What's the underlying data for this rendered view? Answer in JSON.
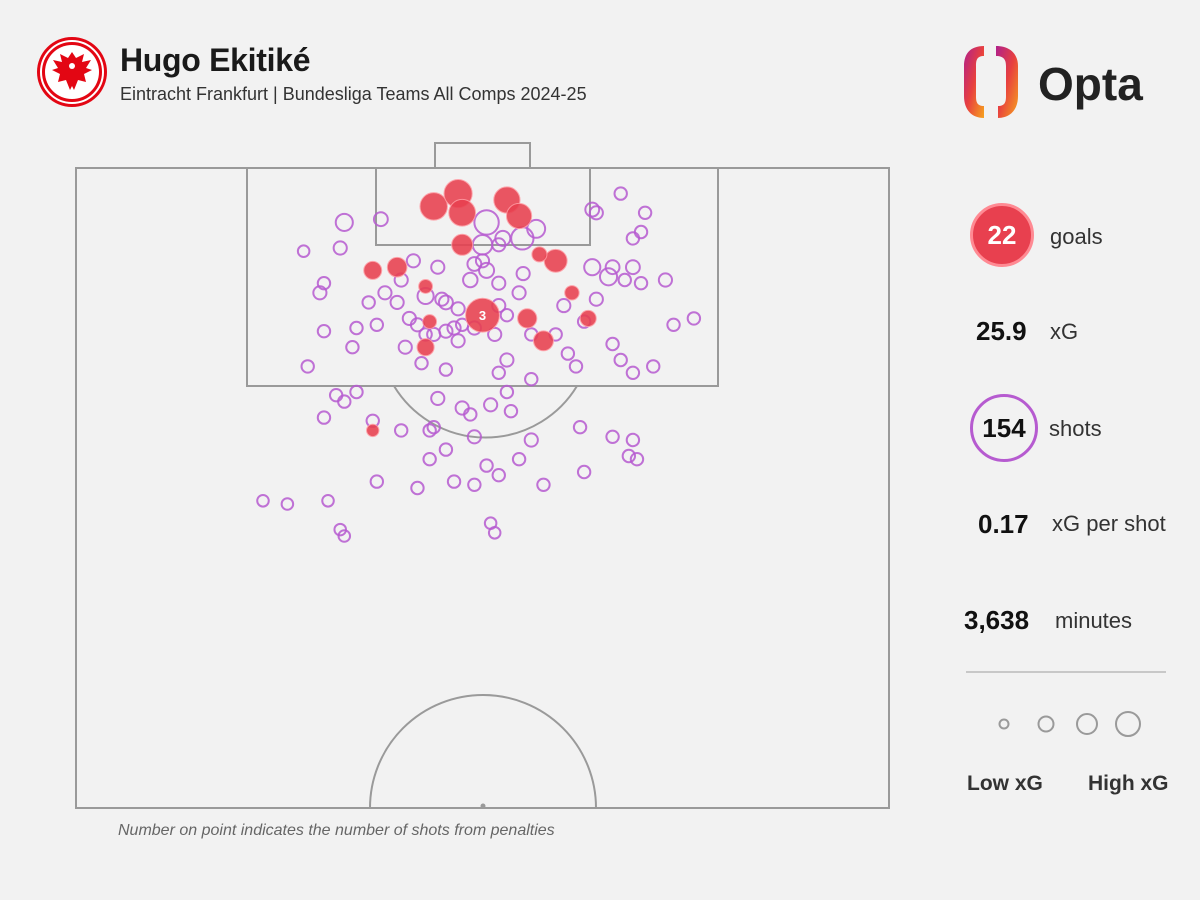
{
  "header": {
    "title": "Hugo Ekitiké",
    "subtitle": "Eintracht Frankfurt | Bundesliga Teams All Comps 2024-25",
    "crest_icon": "eagle-crest-icon",
    "logo_text": "Opta"
  },
  "stats": {
    "goals_value": "22",
    "goals_label": "goals",
    "xg_value": "25.9",
    "xg_label": "xG",
    "shots_value": "154",
    "shots_label": "shots",
    "xg_per_shot_value": "0.17",
    "xg_per_shot_label": "xG per shot",
    "minutes_value": "3,638",
    "minutes_label": "minutes"
  },
  "legend": {
    "low_label": "Low xG",
    "high_label": "High xG"
  },
  "footnote": "Number on point indicates the number of shots from penalties",
  "colors": {
    "goal": "#e8404f",
    "shot": "#b65bd0",
    "pitch_line": "#9a9a9a",
    "background": "#f2f2f2"
  },
  "chart_data": {
    "type": "scatter",
    "x_units": "pitch width, 0-100 left to right",
    "y_units": "distance from goal line, 0-100 of pitch length shown",
    "legend_placement": "right",
    "goals": [
      {
        "x": 44.0,
        "y": 6.0,
        "xg": 0.45
      },
      {
        "x": 47.0,
        "y": 4.0,
        "xg": 0.48
      },
      {
        "x": 47.5,
        "y": 7.0,
        "xg": 0.42
      },
      {
        "x": 53.0,
        "y": 5.0,
        "xg": 0.4
      },
      {
        "x": 54.5,
        "y": 7.5,
        "xg": 0.36
      },
      {
        "x": 47.5,
        "y": 12.0,
        "xg": 0.22
      },
      {
        "x": 59.0,
        "y": 14.5,
        "xg": 0.28
      },
      {
        "x": 36.5,
        "y": 16.0,
        "xg": 0.14
      },
      {
        "x": 39.5,
        "y": 15.5,
        "xg": 0.18
      },
      {
        "x": 57.0,
        "y": 13.5,
        "xg": 0.08
      },
      {
        "x": 43.0,
        "y": 18.5,
        "xg": 0.06
      },
      {
        "x": 61.0,
        "y": 19.5,
        "xg": 0.07
      },
      {
        "x": 50.0,
        "y": 23.0,
        "xg": 0.76,
        "penalties": 3
      },
      {
        "x": 55.5,
        "y": 23.5,
        "xg": 0.17
      },
      {
        "x": 63.0,
        "y": 23.5,
        "xg": 0.1
      },
      {
        "x": 43.5,
        "y": 24.0,
        "xg": 0.06
      },
      {
        "x": 57.5,
        "y": 27.0,
        "xg": 0.19
      },
      {
        "x": 43.0,
        "y": 28.0,
        "xg": 0.12
      },
      {
        "x": 36.5,
        "y": 41.0,
        "xg": 0.04
      }
    ],
    "shots": [
      {
        "x": 50.5,
        "y": 8.5,
        "xg": 0.33
      },
      {
        "x": 54.9,
        "y": 11.0,
        "xg": 0.26
      },
      {
        "x": 33.0,
        "y": 8.5,
        "xg": 0.12
      },
      {
        "x": 56.6,
        "y": 9.5,
        "xg": 0.14
      },
      {
        "x": 50.0,
        "y": 12.0,
        "xg": 0.18
      },
      {
        "x": 52.5,
        "y": 11.0,
        "xg": 0.08
      },
      {
        "x": 37.5,
        "y": 8.0,
        "xg": 0.06
      },
      {
        "x": 63.5,
        "y": 6.5,
        "xg": 0.06
      },
      {
        "x": 64.0,
        "y": 7.0,
        "xg": 0.05
      },
      {
        "x": 67.0,
        "y": 4.0,
        "xg": 0.04
      },
      {
        "x": 70.0,
        "y": 7.0,
        "xg": 0.04
      },
      {
        "x": 69.5,
        "y": 10.0,
        "xg": 0.04
      },
      {
        "x": 68.5,
        "y": 11.0,
        "xg": 0.04
      },
      {
        "x": 28.0,
        "y": 13.0,
        "xg": 0.03
      },
      {
        "x": 32.5,
        "y": 12.5,
        "xg": 0.05
      },
      {
        "x": 41.5,
        "y": 14.5,
        "xg": 0.05
      },
      {
        "x": 50.0,
        "y": 14.5,
        "xg": 0.05
      },
      {
        "x": 52.0,
        "y": 12.0,
        "xg": 0.05
      },
      {
        "x": 49.0,
        "y": 15.0,
        "xg": 0.06
      },
      {
        "x": 44.5,
        "y": 15.5,
        "xg": 0.05
      },
      {
        "x": 50.5,
        "y": 16.0,
        "xg": 0.08
      },
      {
        "x": 48.5,
        "y": 17.5,
        "xg": 0.07
      },
      {
        "x": 55.0,
        "y": 16.5,
        "xg": 0.05
      },
      {
        "x": 52.0,
        "y": 18.0,
        "xg": 0.05
      },
      {
        "x": 63.5,
        "y": 15.5,
        "xg": 0.1
      },
      {
        "x": 65.5,
        "y": 17.0,
        "xg": 0.12
      },
      {
        "x": 66.0,
        "y": 15.5,
        "xg": 0.06
      },
      {
        "x": 68.5,
        "y": 15.5,
        "xg": 0.06
      },
      {
        "x": 67.5,
        "y": 17.5,
        "xg": 0.04
      },
      {
        "x": 72.5,
        "y": 17.5,
        "xg": 0.05
      },
      {
        "x": 69.5,
        "y": 18.0,
        "xg": 0.04
      },
      {
        "x": 40.0,
        "y": 17.5,
        "xg": 0.05
      },
      {
        "x": 38.0,
        "y": 19.5,
        "xg": 0.05
      },
      {
        "x": 30.5,
        "y": 18.0,
        "xg": 0.04
      },
      {
        "x": 30.0,
        "y": 19.5,
        "xg": 0.05
      },
      {
        "x": 39.5,
        "y": 21.0,
        "xg": 0.05
      },
      {
        "x": 45.0,
        "y": 20.5,
        "xg": 0.05
      },
      {
        "x": 52.0,
        "y": 21.5,
        "xg": 0.05
      },
      {
        "x": 54.5,
        "y": 19.5,
        "xg": 0.05
      },
      {
        "x": 60.0,
        "y": 21.5,
        "xg": 0.05
      },
      {
        "x": 64.0,
        "y": 20.5,
        "xg": 0.05
      },
      {
        "x": 43.0,
        "y": 20.0,
        "xg": 0.1
      },
      {
        "x": 45.5,
        "y": 21.0,
        "xg": 0.06
      },
      {
        "x": 47.0,
        "y": 22.0,
        "xg": 0.05
      },
      {
        "x": 46.5,
        "y": 25.0,
        "xg": 0.05
      },
      {
        "x": 47.0,
        "y": 27.0,
        "xg": 0.05
      },
      {
        "x": 51.5,
        "y": 26.0,
        "xg": 0.05
      },
      {
        "x": 45.5,
        "y": 25.5,
        "xg": 0.05
      },
      {
        "x": 47.5,
        "y": 24.5,
        "xg": 0.04
      },
      {
        "x": 42.0,
        "y": 24.5,
        "xg": 0.05
      },
      {
        "x": 37.0,
        "y": 24.5,
        "xg": 0.04
      },
      {
        "x": 49.0,
        "y": 25.0,
        "xg": 0.05
      },
      {
        "x": 44.0,
        "y": 26.0,
        "xg": 0.05
      },
      {
        "x": 40.5,
        "y": 28.0,
        "xg": 0.05
      },
      {
        "x": 34.5,
        "y": 25.0,
        "xg": 0.04
      },
      {
        "x": 36.0,
        "y": 21.0,
        "xg": 0.04
      },
      {
        "x": 43.0,
        "y": 26.0,
        "xg": 0.04
      },
      {
        "x": 42.5,
        "y": 30.5,
        "xg": 0.04
      },
      {
        "x": 45.5,
        "y": 31.5,
        "xg": 0.04
      },
      {
        "x": 52.0,
        "y": 32.0,
        "xg": 0.04
      },
      {
        "x": 53.0,
        "y": 30.0,
        "xg": 0.05
      },
      {
        "x": 59.0,
        "y": 26.0,
        "xg": 0.04
      },
      {
        "x": 60.5,
        "y": 29.0,
        "xg": 0.04
      },
      {
        "x": 61.5,
        "y": 31.0,
        "xg": 0.04
      },
      {
        "x": 67.0,
        "y": 30.0,
        "xg": 0.04
      },
      {
        "x": 68.5,
        "y": 32.0,
        "xg": 0.04
      },
      {
        "x": 71.0,
        "y": 31.0,
        "xg": 0.04
      },
      {
        "x": 76.0,
        "y": 23.5,
        "xg": 0.04
      },
      {
        "x": 73.5,
        "y": 24.5,
        "xg": 0.04
      },
      {
        "x": 66.0,
        "y": 27.5,
        "xg": 0.04
      },
      {
        "x": 62.5,
        "y": 24.0,
        "xg": 0.04
      },
      {
        "x": 56.0,
        "y": 26.0,
        "xg": 0.04
      },
      {
        "x": 34.0,
        "y": 28.0,
        "xg": 0.04
      },
      {
        "x": 28.5,
        "y": 31.0,
        "xg": 0.04
      },
      {
        "x": 30.5,
        "y": 25.5,
        "xg": 0.04
      },
      {
        "x": 32.0,
        "y": 35.5,
        "xg": 0.04
      },
      {
        "x": 34.5,
        "y": 35.0,
        "xg": 0.04
      },
      {
        "x": 33.0,
        "y": 36.5,
        "xg": 0.04
      },
      {
        "x": 36.5,
        "y": 39.5,
        "xg": 0.04
      },
      {
        "x": 44.5,
        "y": 36.0,
        "xg": 0.05
      },
      {
        "x": 47.5,
        "y": 37.5,
        "xg": 0.05
      },
      {
        "x": 48.5,
        "y": 38.5,
        "xg": 0.04
      },
      {
        "x": 51.0,
        "y": 37.0,
        "xg": 0.05
      },
      {
        "x": 53.5,
        "y": 38.0,
        "xg": 0.04
      },
      {
        "x": 53.0,
        "y": 35.0,
        "xg": 0.04
      },
      {
        "x": 56.0,
        "y": 33.0,
        "xg": 0.04
      },
      {
        "x": 44.0,
        "y": 40.5,
        "xg": 0.04
      },
      {
        "x": 40.0,
        "y": 41.0,
        "xg": 0.04
      },
      {
        "x": 49.0,
        "y": 42.0,
        "xg": 0.05
      },
      {
        "x": 56.0,
        "y": 42.5,
        "xg": 0.05
      },
      {
        "x": 45.5,
        "y": 44.0,
        "xg": 0.04
      },
      {
        "x": 43.5,
        "y": 45.5,
        "xg": 0.04
      },
      {
        "x": 54.5,
        "y": 45.5,
        "xg": 0.04
      },
      {
        "x": 50.5,
        "y": 46.5,
        "xg": 0.04
      },
      {
        "x": 46.5,
        "y": 49.0,
        "xg": 0.04
      },
      {
        "x": 52.0,
        "y": 48.0,
        "xg": 0.04
      },
      {
        "x": 62.0,
        "y": 40.5,
        "xg": 0.04
      },
      {
        "x": 66.0,
        "y": 42.0,
        "xg": 0.04
      },
      {
        "x": 68.5,
        "y": 42.5,
        "xg": 0.04
      },
      {
        "x": 68.0,
        "y": 45.0,
        "xg": 0.04
      },
      {
        "x": 69.0,
        "y": 45.5,
        "xg": 0.04
      },
      {
        "x": 62.5,
        "y": 47.5,
        "xg": 0.04
      },
      {
        "x": 57.5,
        "y": 49.5,
        "xg": 0.04
      },
      {
        "x": 49.0,
        "y": 49.5,
        "xg": 0.04
      },
      {
        "x": 42.0,
        "y": 50.0,
        "xg": 0.04
      },
      {
        "x": 37.0,
        "y": 49.0,
        "xg": 0.04
      },
      {
        "x": 31.0,
        "y": 52.0,
        "xg": 0.03
      },
      {
        "x": 23.0,
        "y": 52.0,
        "xg": 0.03
      },
      {
        "x": 26.0,
        "y": 52.5,
        "xg": 0.03
      },
      {
        "x": 32.5,
        "y": 56.5,
        "xg": 0.03
      },
      {
        "x": 33.0,
        "y": 57.5,
        "xg": 0.03
      },
      {
        "x": 51.0,
        "y": 55.5,
        "xg": 0.03
      },
      {
        "x": 51.5,
        "y": 57.0,
        "xg": 0.03
      },
      {
        "x": 43.5,
        "y": 41.0,
        "xg": 0.04
      },
      {
        "x": 30.5,
        "y": 39.0,
        "xg": 0.04
      },
      {
        "x": 41.0,
        "y": 23.5,
        "xg": 0.05
      },
      {
        "x": 53.0,
        "y": 23.0,
        "xg": 0.04
      }
    ],
    "legend_sizes_xg": [
      0.05,
      0.15,
      0.3,
      0.5
    ]
  }
}
